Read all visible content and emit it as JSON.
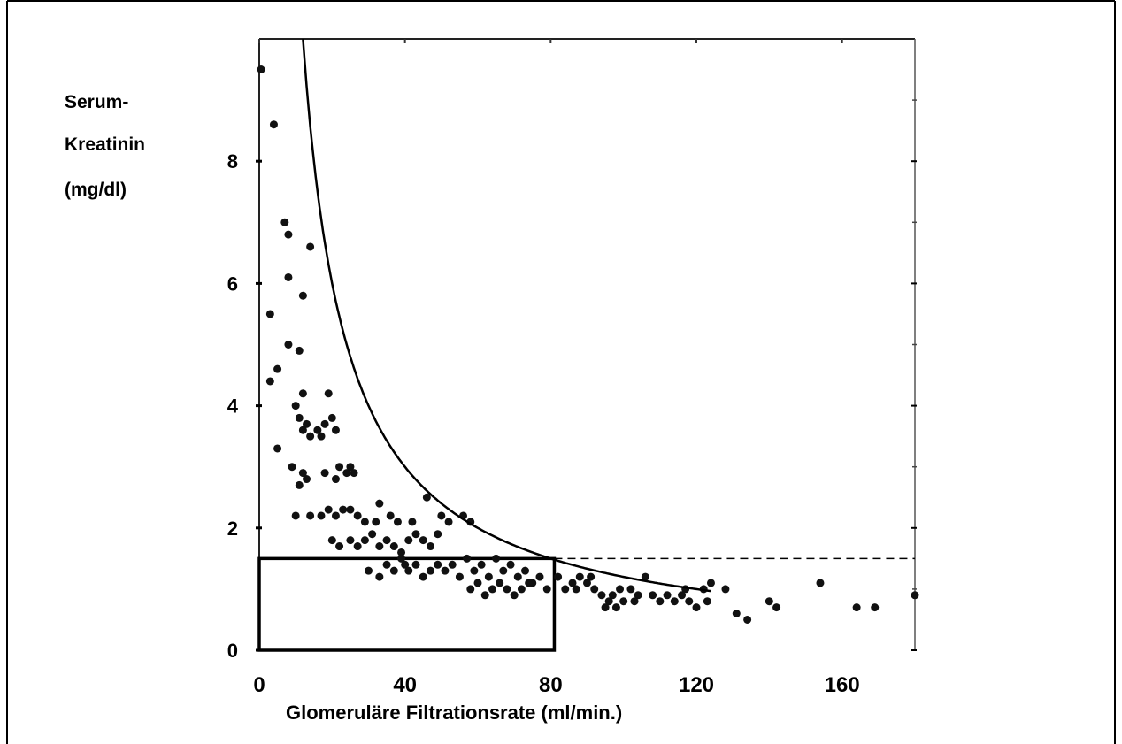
{
  "chart_data": {
    "type": "scatter",
    "ylabel_lines": [
      "Serum-",
      "Kreatinin",
      "(mg/dl)"
    ],
    "xlabel": "Glomeruläre Filtrationsrate (ml/min.)",
    "xlim": [
      0,
      180
    ],
    "ylim": [
      0,
      10
    ],
    "x_ticks": [
      "0",
      "40",
      "80",
      "120",
      "160"
    ],
    "y_ticks": [
      "0",
      "2",
      "4",
      "6",
      "8"
    ],
    "grid": false,
    "points": [
      [
        0.5,
        9.5
      ],
      [
        4,
        8.6
      ],
      [
        7,
        7.0
      ],
      [
        8,
        6.8
      ],
      [
        8,
        6.1
      ],
      [
        12,
        5.8
      ],
      [
        14,
        6.6
      ],
      [
        3,
        5.5
      ],
      [
        5,
        4.6
      ],
      [
        3,
        4.4
      ],
      [
        8,
        5.0
      ],
      [
        11,
        4.9
      ],
      [
        12,
        4.2
      ],
      [
        10,
        4.0
      ],
      [
        11,
        3.8
      ],
      [
        12,
        3.6
      ],
      [
        14,
        3.5
      ],
      [
        13,
        3.7
      ],
      [
        16,
        3.6
      ],
      [
        18,
        3.7
      ],
      [
        17,
        3.5
      ],
      [
        19,
        4.2
      ],
      [
        20,
        3.8
      ],
      [
        21,
        3.6
      ],
      [
        5,
        3.3
      ],
      [
        9,
        3.0
      ],
      [
        11,
        2.7
      ],
      [
        13,
        2.8
      ],
      [
        12,
        2.9
      ],
      [
        18,
        2.9
      ],
      [
        21,
        2.8
      ],
      [
        22,
        3.0
      ],
      [
        24,
        2.9
      ],
      [
        25,
        3.0
      ],
      [
        26,
        2.9
      ],
      [
        10,
        2.2
      ],
      [
        14,
        2.2
      ],
      [
        17,
        2.2
      ],
      [
        19,
        2.3
      ],
      [
        21,
        2.2
      ],
      [
        23,
        2.3
      ],
      [
        25,
        2.3
      ],
      [
        27,
        2.2
      ],
      [
        29,
        2.1
      ],
      [
        32,
        2.1
      ],
      [
        33,
        2.4
      ],
      [
        36,
        2.2
      ],
      [
        38,
        2.1
      ],
      [
        42,
        2.1
      ],
      [
        46,
        2.5
      ],
      [
        50,
        2.2
      ],
      [
        52,
        2.1
      ],
      [
        56,
        2.2
      ],
      [
        58,
        2.1
      ],
      [
        20,
        1.8
      ],
      [
        22,
        1.7
      ],
      [
        25,
        1.8
      ],
      [
        27,
        1.7
      ],
      [
        29,
        1.8
      ],
      [
        31,
        1.9
      ],
      [
        33,
        1.7
      ],
      [
        35,
        1.8
      ],
      [
        37,
        1.7
      ],
      [
        39,
        1.6
      ],
      [
        41,
        1.8
      ],
      [
        43,
        1.9
      ],
      [
        45,
        1.8
      ],
      [
        47,
        1.7
      ],
      [
        49,
        1.9
      ],
      [
        40,
        1.4
      ],
      [
        30,
        1.3
      ],
      [
        33,
        1.2
      ],
      [
        35,
        1.4
      ],
      [
        37,
        1.3
      ],
      [
        39,
        1.5
      ],
      [
        41,
        1.3
      ],
      [
        43,
        1.4
      ],
      [
        45,
        1.2
      ],
      [
        47,
        1.3
      ],
      [
        49,
        1.4
      ],
      [
        51,
        1.3
      ],
      [
        53,
        1.4
      ],
      [
        55,
        1.2
      ],
      [
        57,
        1.5
      ],
      [
        59,
        1.3
      ],
      [
        61,
        1.4
      ],
      [
        63,
        1.2
      ],
      [
        65,
        1.5
      ],
      [
        67,
        1.3
      ],
      [
        69,
        1.4
      ],
      [
        71,
        1.2
      ],
      [
        73,
        1.3
      ],
      [
        75,
        1.1
      ],
      [
        77,
        1.2
      ],
      [
        79,
        1.0
      ],
      [
        58,
        1.0
      ],
      [
        60,
        1.1
      ],
      [
        62,
        0.9
      ],
      [
        64,
        1.0
      ],
      [
        66,
        1.1
      ],
      [
        68,
        1.0
      ],
      [
        70,
        0.9
      ],
      [
        72,
        1.0
      ],
      [
        74,
        1.1
      ],
      [
        82,
        1.2
      ],
      [
        84,
        1.0
      ],
      [
        86,
        1.1
      ],
      [
        88,
        1.2
      ],
      [
        90,
        1.1
      ],
      [
        92,
        1.0
      ],
      [
        94,
        0.9
      ],
      [
        96,
        0.8
      ],
      [
        98,
        0.7
      ],
      [
        100,
        0.8
      ],
      [
        102,
        1.0
      ],
      [
        104,
        0.9
      ],
      [
        106,
        1.2
      ],
      [
        108,
        0.9
      ],
      [
        110,
        0.8
      ],
      [
        112,
        0.9
      ],
      [
        114,
        0.8
      ],
      [
        116,
        0.9
      ],
      [
        118,
        0.8
      ],
      [
        120,
        0.7
      ],
      [
        122,
        1.0
      ],
      [
        124,
        1.1
      ],
      [
        128,
        1.0
      ],
      [
        131,
        0.6
      ],
      [
        134,
        0.5
      ],
      [
        140,
        0.8
      ],
      [
        142,
        0.7
      ],
      [
        154,
        1.1
      ],
      [
        164,
        0.7
      ],
      [
        169,
        0.7
      ],
      [
        180,
        0.9
      ],
      [
        87,
        1.0
      ],
      [
        91,
        1.2
      ],
      [
        95,
        0.7
      ],
      [
        97,
        0.9
      ],
      [
        99,
        1.0
      ],
      [
        103,
        0.8
      ],
      [
        117,
        1.0
      ],
      [
        123,
        0.8
      ]
    ],
    "curve": {
      "type": "reciprocal",
      "k": 120,
      "x_start": 12,
      "x_end": 124
    },
    "reference": {
      "y": 1.5,
      "x_box_end": 81
    }
  }
}
